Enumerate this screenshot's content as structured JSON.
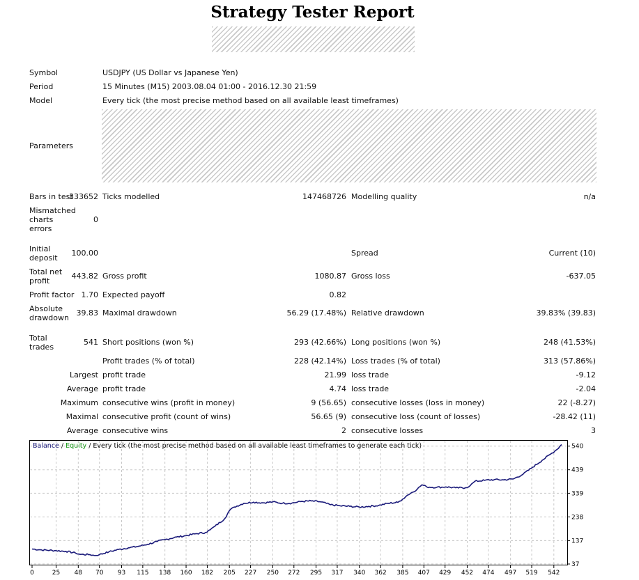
{
  "report": {
    "title": "Strategy Tester Report"
  },
  "header": {
    "symbol_label": "Symbol",
    "symbol_value": "USDJPY (US Dollar vs Japanese Yen)",
    "period_label": "Period",
    "period_value": "15 Minutes (M15) 2003.08.04 01:00 - 2016.12.30 21:59",
    "model_label": "Model",
    "model_value": "Every tick (the most precise method based on all available least timeframes)",
    "parameters_label": "Parameters"
  },
  "stats": {
    "bars_label": "Bars in test",
    "bars_value": "333652",
    "ticks_label": "Ticks modelled",
    "ticks_value": "147468726",
    "quality_label": "Modelling quality",
    "quality_value": "n/a",
    "mismatched_label_1": "Mismatched",
    "mismatched_label_2": "charts",
    "mismatched_label_3": "errors",
    "mismatched_value": "0",
    "initial_label_1": "Initial",
    "initial_label_2": "deposit",
    "initial_value": "100.00",
    "spread_label": "Spread",
    "spread_value": "Current (10)",
    "net_label_1": "Total net",
    "net_label_2": "profit",
    "net_value": "443.82",
    "gross_profit_label": "Gross profit",
    "gross_profit_value": "1080.87",
    "gross_loss_label": "Gross loss",
    "gross_loss_value": "-637.05",
    "pf_label": "Profit factor",
    "pf_value": "1.70",
    "ep_label": "Expected payoff",
    "ep_value": "0.82",
    "abs_label_1": "Absolute",
    "abs_label_2": "drawdown",
    "abs_value": "39.83",
    "maxdd_label": "Maximal drawdown",
    "maxdd_value": "56.29 (17.48%)",
    "reldd_label": "Relative drawdown",
    "reldd_value": "39.83% (39.83)",
    "trades_label_1": "Total",
    "trades_label_2": "trades",
    "trades_value": "541",
    "short_label": "Short positions (won %)",
    "short_value": "293 (42.66%)",
    "long_label": "Long positions (won %)",
    "long_value": "248 (41.53%)",
    "pt_label": "Profit trades (% of total)",
    "pt_value": "228 (42.14%)",
    "lt_label": "Loss trades (% of total)",
    "lt_value": "313 (57.86%)",
    "largest_label": "Largest",
    "largest_profit_label": "profit trade",
    "largest_profit_value": "21.99",
    "largest_loss_label": "loss trade",
    "largest_loss_value": "-9.12",
    "average_label": "Average",
    "average_profit_label": "profit trade",
    "average_profit_value": "4.74",
    "average_loss_label": "loss trade",
    "average_loss_value": "-2.04",
    "maximum_label": "Maximum",
    "max_wins_label": "consecutive wins (profit in money)",
    "max_wins_value": "9 (56.65)",
    "max_losses_label": "consecutive losses (loss in money)",
    "max_losses_value": "22 (-8.27)",
    "maximal_label": "Maximal",
    "maximal_profit_label": "consecutive profit (count of wins)",
    "maximal_profit_value": "56.65 (9)",
    "maximal_loss_label": "consecutive loss (count of losses)",
    "maximal_loss_value": "-28.42 (11)",
    "avg_cons_label": "Average",
    "avg_wins_label": "consecutive wins",
    "avg_wins_value": "2",
    "avg_losses_label": "consecutive losses",
    "avg_losses_value": "3"
  },
  "chart_data": {
    "type": "line",
    "legend_balance": "Balance",
    "legend_sep": " / ",
    "legend_equity": "Equity",
    "legend_rest": " / Every tick (the most precise method based on all available least timeframes to generate each tick)",
    "colors": {
      "balance": "#1a1a7a",
      "equity": "#1b9a1b",
      "grid": "#c8c8c8"
    },
    "xlim": [
      0,
      553
    ],
    "ylim": [
      37,
      560
    ],
    "xticks": [
      "0",
      "25",
      "48",
      "70",
      "93",
      "115",
      "138",
      "160",
      "182",
      "205",
      "227",
      "250",
      "272",
      "295",
      "317",
      "340",
      "362",
      "385",
      "407",
      "429",
      "452",
      "474",
      "497",
      "519",
      "542"
    ],
    "yticks": [
      "540",
      "439",
      "339",
      "238",
      "137",
      "37"
    ],
    "series": [
      {
        "name": "Balance",
        "x": [
          0,
          10,
          25,
          35,
          45,
          50,
          60,
          65,
          70,
          80,
          90,
          100,
          110,
          120,
          130,
          140,
          150,
          160,
          170,
          180,
          185,
          190,
          200,
          205,
          210,
          220,
          230,
          240,
          250,
          260,
          270,
          280,
          290,
          300,
          310,
          320,
          330,
          340,
          350,
          360,
          370,
          380,
          385,
          390,
          400,
          405,
          410,
          420,
          430,
          440,
          450,
          455,
          460,
          470,
          480,
          490,
          500,
          510,
          520,
          530,
          540,
          545,
          550
        ],
        "values": [
          101,
          97,
          94,
          91,
          84,
          78,
          77,
          73,
          77,
          89,
          99,
          106,
          112,
          121,
          133,
          143,
          152,
          158,
          166,
          171,
          183,
          198,
          230,
          265,
          280,
          296,
          301,
          298,
          302,
          296,
          297,
          304,
          306,
          302,
          290,
          285,
          283,
          280,
          283,
          287,
          296,
          300,
          314,
          331,
          356,
          375,
          366,
          364,
          366,
          362,
          362,
          371,
          390,
          394,
          397,
          396,
          400,
          420,
          450,
          480,
          510,
          525,
          547
        ]
      }
    ]
  }
}
